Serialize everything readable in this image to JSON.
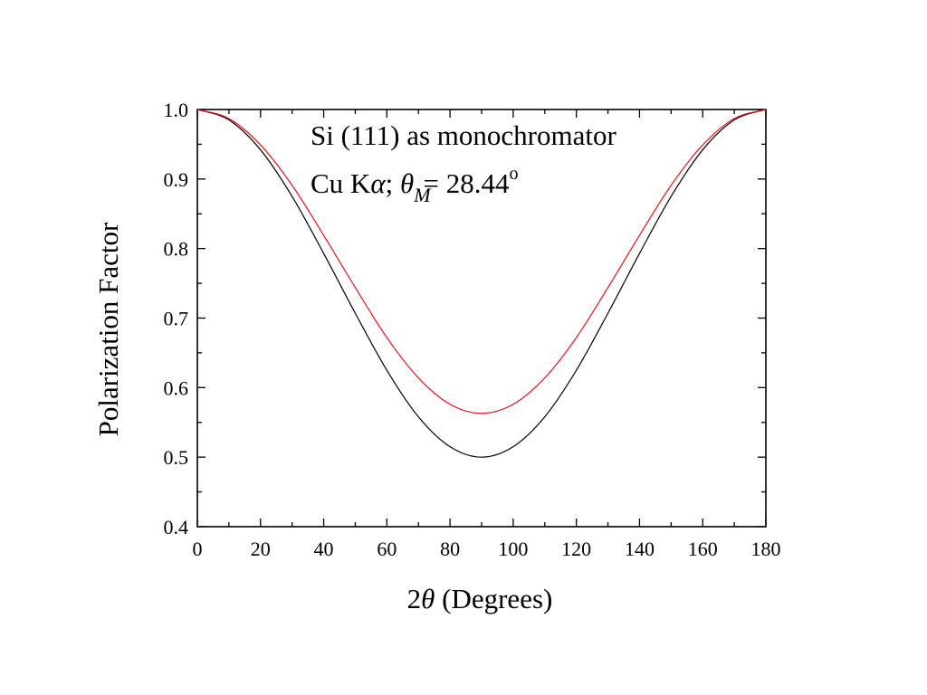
{
  "chart_data": {
    "type": "line",
    "title": "",
    "xlabel": {
      "prefix": "2",
      "symbol": "θ",
      "suffix": " (Degrees)"
    },
    "ylabel": "Polarization Factor",
    "xlim": [
      0,
      180
    ],
    "ylim": [
      0.4,
      1.0
    ],
    "x_major_ticks": [
      0,
      20,
      40,
      60,
      80,
      100,
      120,
      140,
      160,
      180
    ],
    "x_tick_labels": [
      "0",
      "20",
      "40",
      "60",
      "80",
      "100",
      "120",
      "140",
      "160",
      "180"
    ],
    "y_major_ticks": [
      0.4,
      0.5,
      0.6,
      0.7,
      0.8,
      0.9,
      1.0
    ],
    "y_tick_labels": [
      "0.4",
      "0.5",
      "0.6",
      "0.7",
      "0.8",
      "0.9",
      "1.0"
    ],
    "grid": false,
    "legend": "none",
    "annotations": {
      "line1": "Si (111) as monochromator",
      "line2_prefix": "Cu K",
      "line2_alpha": "α",
      "line2_sep": "; ",
      "line2_theta": "θ",
      "line2_sub": "M",
      "line2_eq": "= 28.44",
      "line2_sup": "o"
    },
    "series": [
      {
        "color": "#000000",
        "x": [
          0,
          10,
          20,
          30,
          40,
          50,
          60,
          70,
          80,
          90,
          100,
          110,
          120,
          130,
          140,
          150,
          160,
          170,
          180
        ],
        "y": [
          1.0,
          0.985,
          0.942,
          0.875,
          0.793,
          0.707,
          0.625,
          0.558,
          0.515,
          0.5,
          0.515,
          0.558,
          0.625,
          0.707,
          0.793,
          0.875,
          0.942,
          0.985,
          1.0
        ]
      },
      {
        "color": "#e8151b",
        "x": [
          0,
          10,
          20,
          30,
          40,
          50,
          60,
          70,
          80,
          90,
          100,
          110,
          120,
          130,
          140,
          150,
          160,
          170,
          180
        ],
        "y": [
          1.0,
          0.987,
          0.949,
          0.891,
          0.819,
          0.744,
          0.672,
          0.614,
          0.576,
          0.563,
          0.576,
          0.614,
          0.672,
          0.744,
          0.819,
          0.891,
          0.949,
          0.987,
          1.0
        ]
      }
    ]
  }
}
